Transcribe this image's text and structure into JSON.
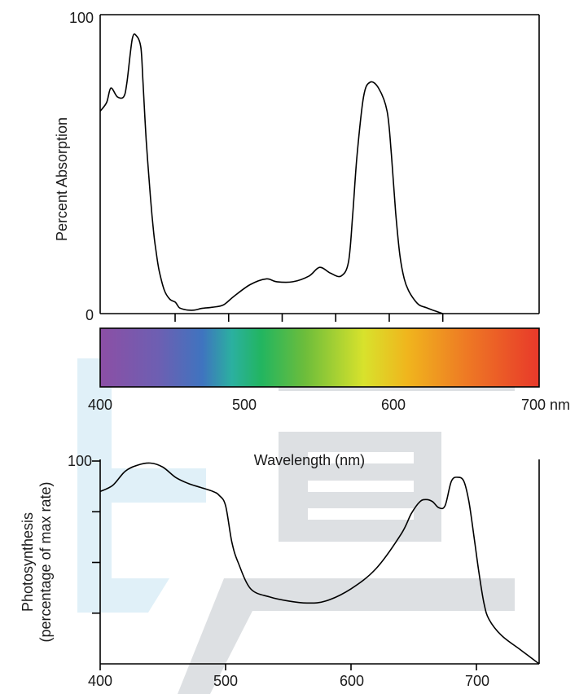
{
  "chart_data": [
    {
      "type": "line",
      "ylabel": "Percent Absorption",
      "xlim": [
        380,
        790
      ],
      "ylim": [
        0,
        100
      ],
      "y_tick_labels": [
        "0",
        "100"
      ],
      "x_ticks": [
        450,
        500,
        550,
        600,
        650,
        700
      ],
      "series": [
        {
          "x": [
            380,
            386,
            390,
            396,
            402,
            405,
            410,
            414,
            418,
            420,
            423,
            427,
            430,
            432,
            435,
            440,
            445,
            450,
            452,
            454,
            458,
            462,
            468,
            475,
            485,
            495,
            505,
            520,
            535,
            545,
            560,
            575,
            585,
            595,
            605,
            612,
            616,
            620,
            626,
            632,
            640,
            648,
            652,
            656,
            660,
            664,
            668,
            673,
            678,
            685,
            692,
            700
          ],
          "y": [
            70,
            73,
            78,
            75,
            75,
            80,
            95,
            96,
            92,
            80,
            60,
            40,
            28,
            22,
            15,
            8,
            5,
            4,
            3,
            2,
            1.5,
            1.2,
            1.2,
            1.8,
            2.2,
            3,
            6,
            10,
            12,
            11,
            11,
            13,
            16,
            14,
            13,
            18,
            35,
            55,
            75,
            80,
            78,
            70,
            55,
            35,
            20,
            12,
            8,
            5,
            3,
            2,
            1,
            0
          ]
        }
      ]
    },
    {
      "type": "line",
      "xlabel": "Wavelength (nm)",
      "x_tick_labels": [
        "400",
        "500",
        "600",
        "700 nm"
      ],
      "gradient_stops": [
        {
          "nm": 400,
          "color": "#8c4fa5"
        },
        {
          "nm": 440,
          "color": "#6d5fb2"
        },
        {
          "nm": 470,
          "color": "#3f74bf"
        },
        {
          "nm": 490,
          "color": "#2bb0a0"
        },
        {
          "nm": 510,
          "color": "#22b560"
        },
        {
          "nm": 540,
          "color": "#6dbd3b"
        },
        {
          "nm": 580,
          "color": "#d8e22c"
        },
        {
          "nm": 610,
          "color": "#f0b51d"
        },
        {
          "nm": 650,
          "color": "#ee7a24"
        },
        {
          "nm": 700,
          "color": "#e8392a"
        }
      ]
    },
    {
      "type": "line",
      "ylabel": "Photosynthesis\n(percentage of max rate)",
      "xlim": [
        400,
        750
      ],
      "ylim": [
        0,
        100
      ],
      "y_tick_labels": [
        "100"
      ],
      "y_ticks": [
        25,
        50,
        75,
        100
      ],
      "x_tick_labels": [
        "400",
        "500",
        "600",
        "700"
      ],
      "series": [
        {
          "x": [
            400,
            410,
            420,
            430,
            440,
            450,
            460,
            470,
            480,
            490,
            495,
            500,
            505,
            510,
            520,
            535,
            550,
            565,
            580,
            600,
            620,
            640,
            648,
            655,
            660,
            665,
            670,
            675,
            680,
            685,
            690,
            694,
            698,
            702,
            706,
            710,
            720,
            735,
            750
          ],
          "y": [
            85,
            88,
            95,
            98,
            99,
            97,
            92,
            89,
            87,
            85,
            83,
            78,
            60,
            50,
            37,
            33,
            31,
            30,
            31,
            37,
            47,
            64,
            74,
            80,
            81,
            80,
            77,
            78,
            90,
            92,
            90,
            80,
            63,
            45,
            30,
            22,
            14,
            7,
            0
          ]
        }
      ]
    }
  ]
}
